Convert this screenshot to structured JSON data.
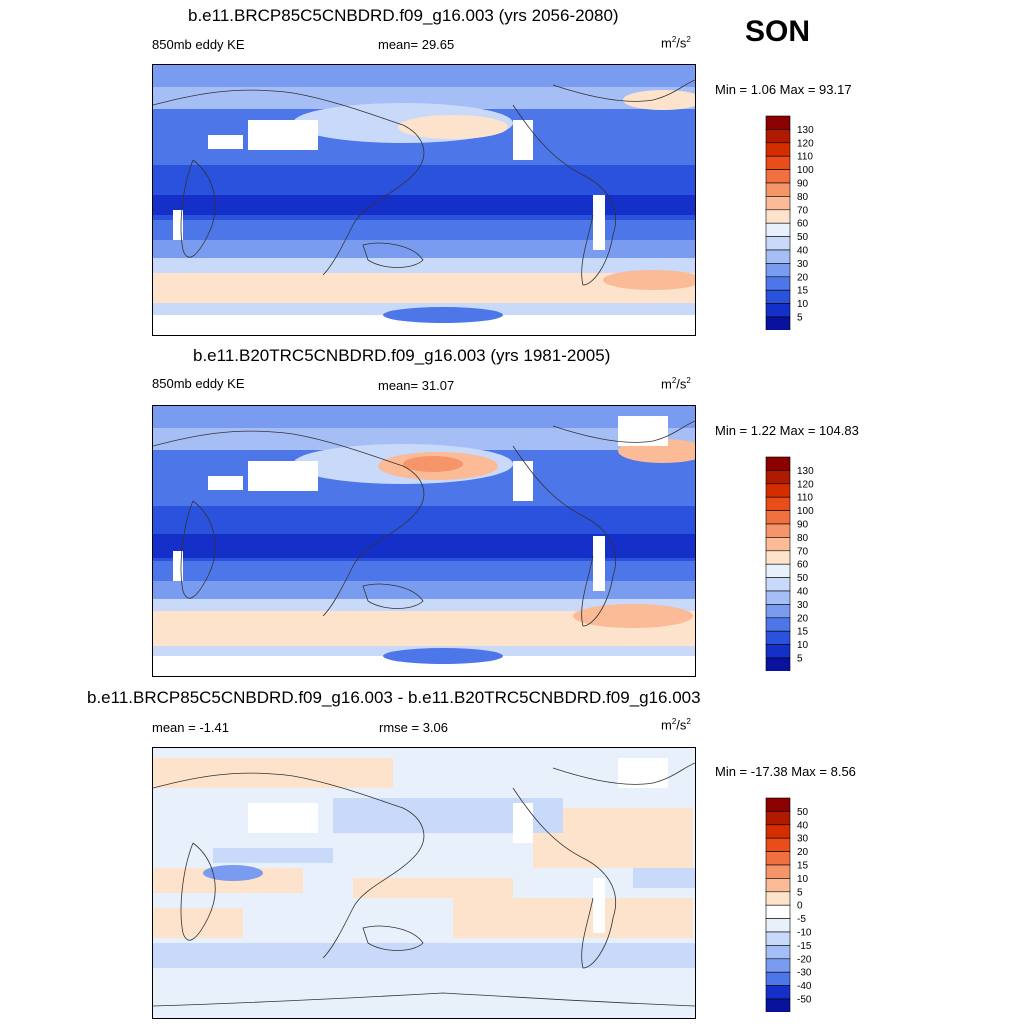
{
  "header": {
    "season": "SON"
  },
  "units_html_label": "m2/s2",
  "panels": [
    {
      "title": "b.e11.BRCP85C5CNBDRD.f09_g16.003 (yrs 2056-2080)",
      "left_label": "850mb eddy KE",
      "center_label": "mean=  29.65",
      "units_base": "m",
      "units_sup1": "2",
      "units_mid": "/s",
      "units_sup2": "2",
      "minmax": "Min =   1.06 Max =  93.17",
      "colorbar_labels": [
        "130",
        "120",
        "110",
        "100",
        "90",
        "80",
        "70",
        "60",
        "50",
        "40",
        "30",
        "20",
        "15",
        "10",
        "5"
      ],
      "colorbar_colors": [
        "#8b0000",
        "#b01a00",
        "#d42e00",
        "#e84d1a",
        "#f07040",
        "#f6956a",
        "#fabb96",
        "#fde3cc",
        "#e8f0fc",
        "#c8d9fa",
        "#a5bef6",
        "#7a9cf0",
        "#4d76e8",
        "#2a52dc",
        "#1530c8",
        "#08129c"
      ]
    },
    {
      "title": "b.e11.B20TRC5CNBDRD.f09_g16.003 (yrs 1981-2005)",
      "left_label": "850mb eddy KE",
      "center_label": "mean=  31.07",
      "units_base": "m",
      "units_sup1": "2",
      "units_mid": "/s",
      "units_sup2": "2",
      "minmax": "Min =   1.22 Max = 104.83",
      "colorbar_labels": [
        "130",
        "120",
        "110",
        "100",
        "90",
        "80",
        "70",
        "60",
        "50",
        "40",
        "30",
        "20",
        "15",
        "10",
        "5"
      ],
      "colorbar_colors": [
        "#8b0000",
        "#b01a00",
        "#d42e00",
        "#e84d1a",
        "#f07040",
        "#f6956a",
        "#fabb96",
        "#fde3cc",
        "#e8f0fc",
        "#c8d9fa",
        "#a5bef6",
        "#7a9cf0",
        "#4d76e8",
        "#2a52dc",
        "#1530c8",
        "#08129c"
      ]
    },
    {
      "title": "b.e11.BRCP85C5CNBDRD.f09_g16.003 - b.e11.B20TRC5CNBDRD.f09_g16.003",
      "left_label": "mean =  -1.41",
      "center_label": "rmse =   3.06",
      "units_base": "m",
      "units_sup1": "2",
      "units_mid": "/s",
      "units_sup2": "2",
      "minmax": "Min = -17.38 Max =   8.56",
      "colorbar_labels": [
        "50",
        "40",
        "30",
        "20",
        "15",
        "10",
        "5",
        "0",
        "-5",
        "-10",
        "-15",
        "-20",
        "-30",
        "-40",
        "-50"
      ],
      "colorbar_colors": [
        "#8b0000",
        "#b01a00",
        "#d42e00",
        "#e84d1a",
        "#f07040",
        "#f6956a",
        "#fabb96",
        "#fde3cc",
        "#ffffff",
        "#e8f0fc",
        "#c8d9fa",
        "#a5bef6",
        "#7a9cf0",
        "#4d76e8",
        "#1530c8",
        "#08129c"
      ]
    }
  ]
}
